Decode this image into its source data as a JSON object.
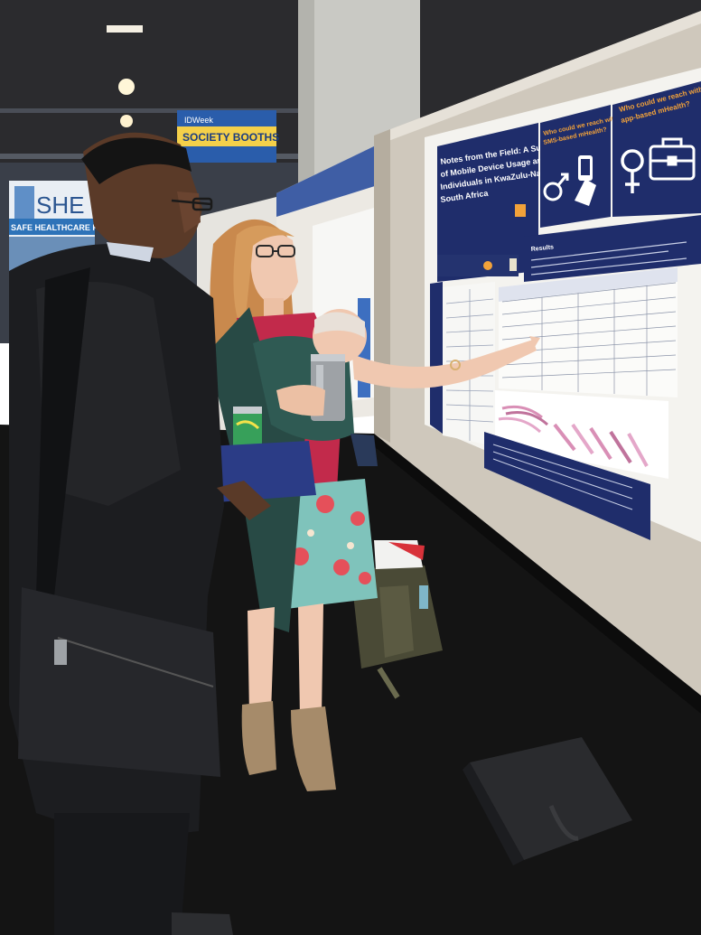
{
  "scene": {
    "description_alt": "Conference poster session photo",
    "booth_sign": {
      "brand": "IDWeek",
      "text": "SOCIETY BOOTHS"
    },
    "banner_left": {
      "big_text": "SHE",
      "strip_text": "SAFE HEALTHCARE FOR"
    },
    "poster": {
      "title": "Notes from the Field: A Survey of Mobile Device Usage among Individuals in KwaZulu-Natal, South Africa",
      "title_lines": [
        "Notes from the Field: A Survey",
        "of Mobile Device Usage among",
        "Individuals in KwaZulu-Natal,",
        "South Africa"
      ],
      "panel_sms_title_lines": [
        "Who could we reach with",
        "SMS-based mHealth?"
      ],
      "panel_app_title_lines": [
        "Who could we reach with",
        "app-based mHealth?"
      ],
      "results_heading": "Results"
    },
    "colors": {
      "poster_navy": "#1f2d6b",
      "poster_orange": "#f2a23a",
      "carpet": "#141414",
      "board": "#c9c2b6",
      "shirt_red": "#c22a4b",
      "skirt_teal": "#7fc3bb"
    }
  }
}
